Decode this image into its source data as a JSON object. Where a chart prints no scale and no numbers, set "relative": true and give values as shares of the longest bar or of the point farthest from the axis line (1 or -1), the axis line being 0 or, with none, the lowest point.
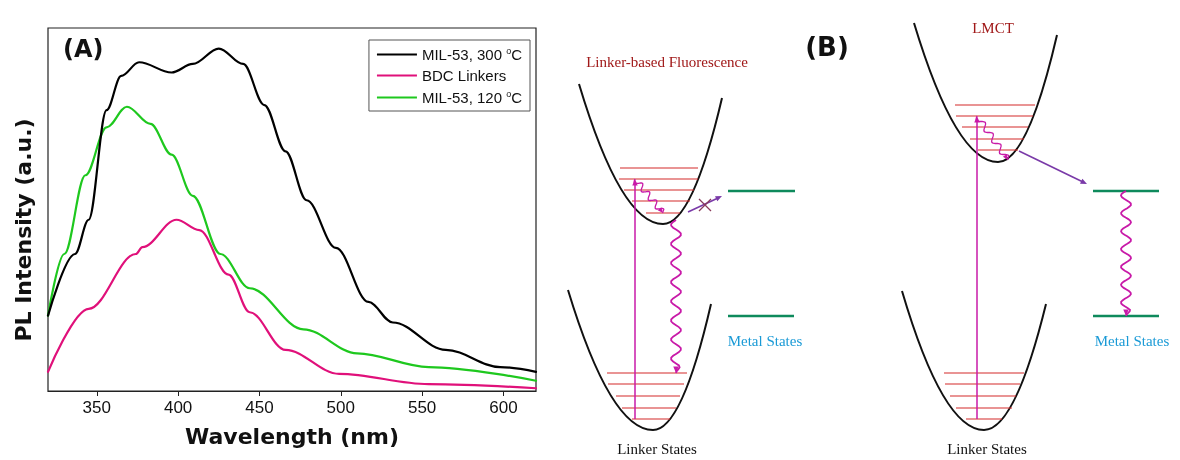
{
  "chart_data": [
    {
      "type": "line",
      "title": "(A)",
      "xlabel": "Wavelength (nm)",
      "ylabel": "PL Intensity (a.u.)",
      "relative": true,
      "xlim": [
        320,
        620
      ],
      "xticks": [
        350,
        400,
        450,
        500,
        550,
        600
      ],
      "legend": "top right",
      "grid": false,
      "marker": "none",
      "line_style": "solid",
      "series": [
        {
          "name": "MIL-53, 300 $^{o}$C",
          "color": "#000000",
          "x": [
            320,
            336.6,
            345,
            356,
            365,
            376,
            396,
            409,
            425,
            440,
            453,
            466,
            479,
            497,
            517,
            532,
            564.5,
            598,
            620
          ],
          "values": [
            0.22,
            0.4,
            0.5,
            0.82,
            0.92,
            0.96,
            0.93,
            0.955,
            1.0,
            0.955,
            0.835,
            0.7,
            0.557,
            0.418,
            0.26,
            0.2,
            0.12,
            0.07,
            0.056
          ]
        },
        {
          "name": "BDC Linkers",
          "color": "#e0107a",
          "x": [
            320,
            345,
            374,
            378,
            399,
            413,
            431,
            444,
            466,
            499,
            554,
            620
          ],
          "values": [
            0.056,
            0.24,
            0.4,
            0.42,
            0.5,
            0.47,
            0.34,
            0.23,
            0.12,
            0.05,
            0.02,
            0.008
          ]
        },
        {
          "name": "MIL-53, 120 $^{o}$C",
          "color": "#1ec81e",
          "x": [
            320,
            330,
            343,
            356,
            368.5,
            383,
            396,
            409,
            426,
            444,
            477,
            510,
            554,
            620
          ],
          "values": [
            0.22,
            0.4,
            0.63,
            0.77,
            0.83,
            0.78,
            0.69,
            0.57,
            0.4,
            0.3,
            0.18,
            0.11,
            0.07,
            0.03
          ]
        }
      ]
    },
    {
      "type": "other",
      "title": "(B)",
      "annotations": [
        "Linker-based Fluorescence",
        "LMCT",
        "Metal States",
        "Metal States",
        "Linker States",
        "Linker States"
      ]
    }
  ]
}
